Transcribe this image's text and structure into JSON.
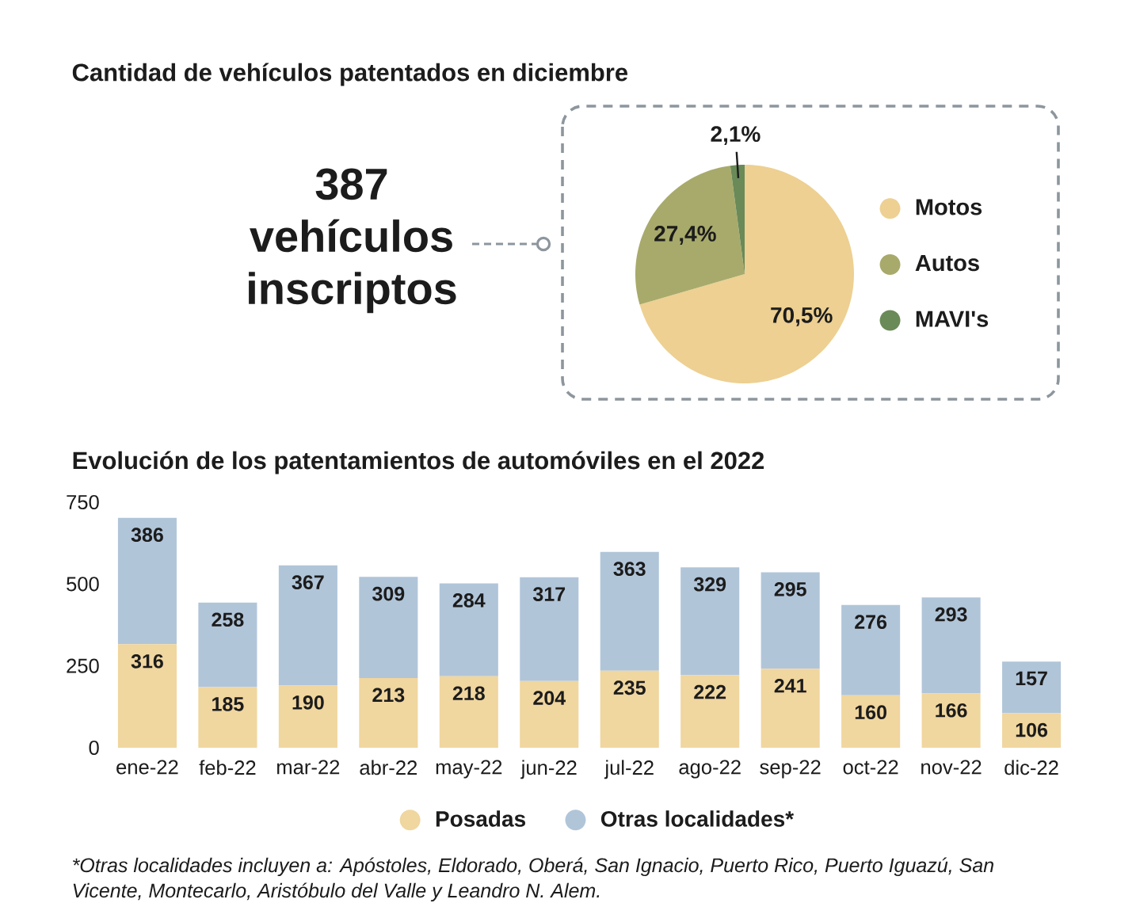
{
  "chart_data": [
    {
      "type": "pie",
      "title": "Cantidad de vehículos patentados en diciembre",
      "annotations": [
        "387 vehículos inscriptos"
      ],
      "categories": [
        "Motos",
        "Autos",
        "MAVI's"
      ],
      "values": [
        70.5,
        27.4,
        2.1
      ],
      "colors": [
        "#edd092",
        "#a8aa6b",
        "#6a8a58"
      ],
      "value_labels": [
        "70,5%",
        "27,4%",
        "2,1%"
      ],
      "legend": "right"
    },
    {
      "type": "bar",
      "title": "Evolución de los patentamientos de automóviles en el 2022",
      "categories": [
        "ene-22",
        "feb-22",
        "mar-22",
        "abr-22",
        "may-22",
        "jun-22",
        "jul-22",
        "ago-22",
        "sep-22",
        "oct-22",
        "nov-22",
        "dic-22"
      ],
      "series": [
        {
          "name": "Posadas",
          "color": "#f0d69f",
          "values": [
            316,
            185,
            190,
            213,
            218,
            204,
            235,
            222,
            241,
            160,
            166,
            106
          ]
        },
        {
          "name": "Otras localidades*",
          "color": "#b1c5d9",
          "values": [
            386,
            258,
            367,
            309,
            284,
            317,
            363,
            329,
            295,
            276,
            293,
            157
          ]
        }
      ],
      "stacked": true,
      "ylim": [
        0,
        750
      ],
      "yticks": [
        0,
        250,
        500,
        750
      ],
      "data_labels": true,
      "legend": "bottom",
      "annotations": [
        "*Otras localidades incluyen a: Apóstoles, Eldorado, Oberá, San Ignacio, Puerto Rico, Puerto Iguazú, San Vicente, Montecarlo, Aristóbulo del Valle y Leandro N. Alem."
      ]
    }
  ]
}
